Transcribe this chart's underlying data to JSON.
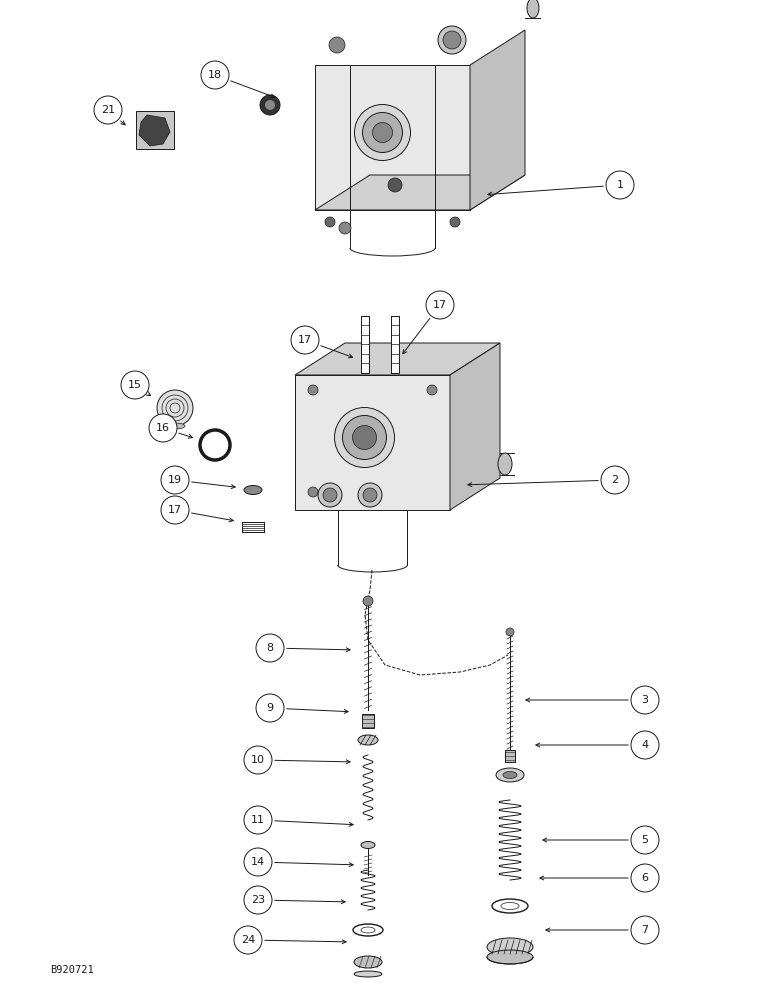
{
  "bg_color": "#ffffff",
  "lc": "#1a1a1a",
  "fig_width": 7.72,
  "fig_height": 10.0,
  "dpi": 100,
  "watermark": "B920721",
  "xlim": [
    0,
    772
  ],
  "ylim": [
    0,
    1000
  ]
}
